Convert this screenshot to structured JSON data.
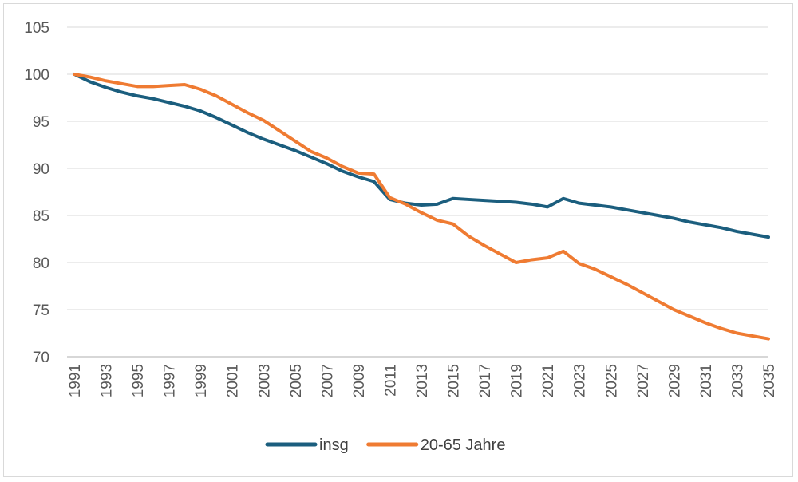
{
  "chart_data": {
    "type": "line",
    "ylim": [
      70,
      105
    ],
    "yticks": [
      105,
      100,
      95,
      90,
      85,
      80,
      75,
      70
    ],
    "x": [
      1991,
      1992,
      1993,
      1994,
      1995,
      1996,
      1997,
      1998,
      1999,
      2000,
      2001,
      2002,
      2003,
      2004,
      2005,
      2006,
      2007,
      2008,
      2009,
      2010,
      2011,
      2012,
      2013,
      2014,
      2015,
      2016,
      2017,
      2018,
      2019,
      2020,
      2021,
      2022,
      2023,
      2024,
      2025,
      2026,
      2027,
      2028,
      2029,
      2030,
      2031,
      2032,
      2033,
      2034,
      2035
    ],
    "xticks": [
      "1991",
      "1993",
      "1995",
      "1997",
      "1999",
      "2001",
      "2003",
      "2005",
      "2007",
      "2009",
      "2011",
      "2013",
      "2015",
      "2017",
      "2019",
      "2021",
      "2023",
      "2025",
      "2027",
      "2029",
      "2031",
      "2033",
      "2035"
    ],
    "grid": true,
    "legend_position": "bottom",
    "series": [
      {
        "name": "insg",
        "color": "#1b5e7e",
        "values": [
          100.0,
          99.2,
          98.6,
          98.1,
          97.7,
          97.4,
          97.0,
          96.6,
          96.1,
          95.4,
          94.6,
          93.8,
          93.1,
          92.5,
          91.9,
          91.2,
          90.5,
          89.7,
          89.1,
          88.6,
          86.7,
          86.3,
          86.1,
          86.2,
          86.8,
          86.7,
          86.6,
          86.5,
          86.4,
          86.2,
          85.9,
          86.8,
          86.3,
          86.1,
          85.9,
          85.6,
          85.3,
          85.0,
          84.7,
          84.3,
          84.0,
          83.7,
          83.3,
          83.0,
          82.7
        ]
      },
      {
        "name": "20-65 Jahre",
        "color": "#ef7b32",
        "values": [
          100.0,
          99.7,
          99.3,
          99.0,
          98.7,
          98.7,
          98.8,
          98.9,
          98.4,
          97.7,
          96.8,
          95.9,
          95.1,
          94.0,
          92.9,
          91.8,
          91.1,
          90.2,
          89.5,
          89.4,
          86.9,
          86.2,
          85.3,
          84.5,
          84.1,
          82.8,
          81.8,
          80.9,
          80.0,
          80.3,
          80.5,
          81.2,
          79.9,
          79.3,
          78.5,
          77.7,
          76.8,
          75.9,
          75.0,
          74.3,
          73.6,
          73.0,
          72.5,
          72.2,
          71.9
        ]
      }
    ]
  }
}
